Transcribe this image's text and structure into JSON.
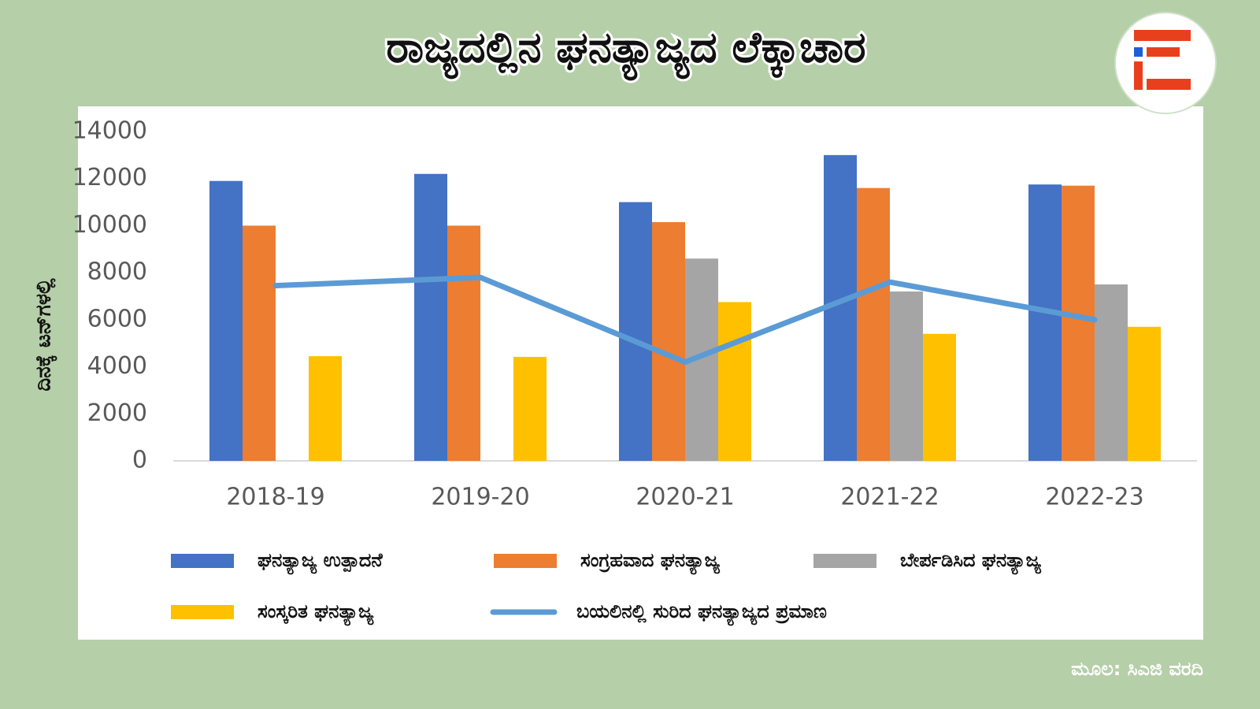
{
  "chart_data": {
    "type": "bar",
    "title": "ರಾಜ್ಯದಲ್ಲಿನ ಘನತ್ಯಾಜ್ಯದ ಲೆಕ್ಕಾಚಾರ",
    "y_label": "ದಿನಕ್ಕೆ ಟನ್‌ಗಳಲ್ಲಿ",
    "source": "ಮೂಲ: ಸಿಎಜಿ ವರದಿ",
    "categories": [
      "2018-19",
      "2019-20",
      "2020-21",
      "2021-22",
      "2022-23"
    ],
    "series": [
      {
        "name": "ಘನತ್ಯಾಜ್ಯ ಉತ್ಪಾದನೆ",
        "color": "#4472c4",
        "values": [
          11900,
          12200,
          11000,
          13000,
          11750
        ]
      },
      {
        "name": "ಸಂಗ್ರಹವಾದ ಘನತ್ಯಾಜ್ಯ",
        "color": "#ed7d31",
        "values": [
          10000,
          10000,
          10150,
          11600,
          11700
        ]
      },
      {
        "name": "ಬೇರ್ಪಡಿಸಿದ ಘನತ್ಯಾಜ್ಯ",
        "color": "#a5a5a5",
        "values": [
          null,
          null,
          8600,
          7200,
          7500
        ]
      },
      {
        "name": "ಸಂಸ್ಕರಿತ ಘನತ್ಯಾಜ್ಯ",
        "color": "#ffc000",
        "values": [
          4450,
          4420,
          6750,
          5400,
          5700
        ]
      },
      {
        "name": "ಬಯಲಿನಲ್ಲಿ ಸುರಿದ ಘನತ್ಯಾಜ್ಯದ ಪ್ರಮಾಣ",
        "color": "#5b9bd5",
        "type": "line",
        "values": [
          7450,
          7800,
          4200,
          7600,
          6000
        ]
      }
    ],
    "ylim": [
      0,
      14000
    ],
    "yticks": [
      0,
      2000,
      4000,
      6000,
      8000,
      10000,
      12000,
      14000
    ],
    "grid": false,
    "legend": "bottom"
  }
}
